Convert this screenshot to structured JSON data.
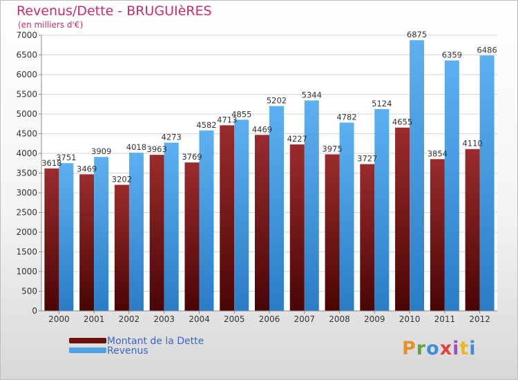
{
  "chart_data": {
    "type": "bar",
    "title": "Revenus/Dette - BRUGUIèRES",
    "subtitle": "(en milliers d'€)",
    "categories": [
      "2000",
      "2001",
      "2002",
      "2003",
      "2004",
      "2005",
      "2006",
      "2007",
      "2008",
      "2009",
      "2010",
      "2011",
      "2012"
    ],
    "series": [
      {
        "name": "Montant de la Dette",
        "color": "#8c2020",
        "values": [
          3618,
          3469,
          3202,
          3963,
          3769,
          4713,
          4469,
          4227,
          3975,
          3727,
          4655,
          3854,
          4110
        ]
      },
      {
        "name": "Revenus",
        "color": "#4ea3e8",
        "values": [
          3751,
          3909,
          4018,
          4273,
          4582,
          4855,
          5202,
          5344,
          4782,
          5124,
          6875,
          6359,
          6486
        ]
      }
    ],
    "ylim": [
      0,
      7000
    ],
    "yticks": [
      0,
      500,
      1000,
      1500,
      2000,
      2500,
      3000,
      3500,
      4000,
      4500,
      5000,
      5500,
      6000,
      6500,
      7000
    ],
    "grid": true,
    "legend_position": "bottom-left"
  },
  "legend": {
    "items": [
      {
        "label": "Montant de la Dette",
        "color": "#6b0f0f"
      },
      {
        "label": "Revenus",
        "color": "#4ea3e8"
      }
    ]
  },
  "logo": {
    "text": "Proxiti",
    "colors": [
      "#e8902a",
      "#5aa83c",
      "#3a8fd8",
      "#e04040",
      "#9a4fc9",
      "#e8b82a",
      "#3a8fd8"
    ]
  }
}
